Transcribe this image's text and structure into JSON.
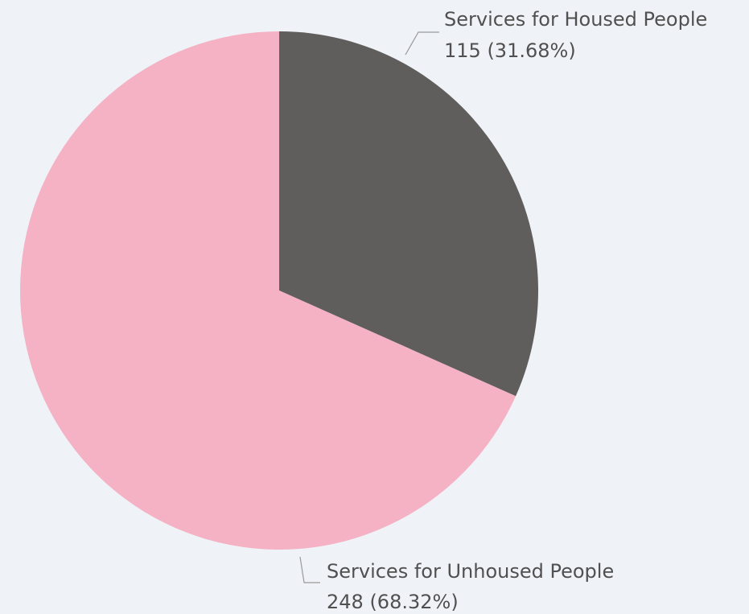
{
  "chart_data": {
    "type": "pie",
    "title": "",
    "slices": [
      {
        "name": "Services for Housed People",
        "value": 115,
        "percent_label": "115 (31.68%)",
        "color": "#5f5e5c"
      },
      {
        "name": "Services for Unhoused People",
        "value": 248,
        "percent_label": "248 (68.32%)",
        "color": "#f4b2c4"
      }
    ],
    "start_angle": "12 o'clock",
    "direction": "clockwise",
    "data_labels": "outside with leader lines"
  },
  "colors": {
    "background": "#eff2f7",
    "label_text": "#505050",
    "leader_line": "#9a9a9a"
  }
}
